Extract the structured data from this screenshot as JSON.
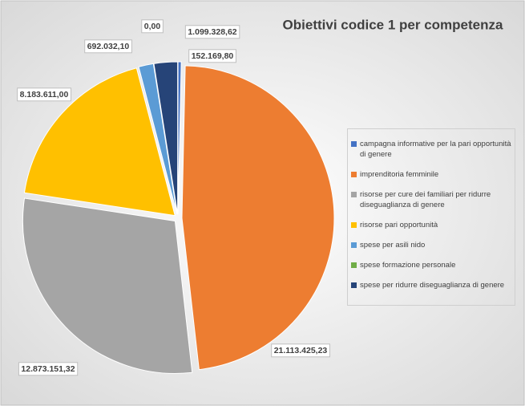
{
  "chart_data": {
    "type": "pie",
    "title": "Obiettivi codice 1 per competenza",
    "categories": [
      "campagna informative per la pari opportunità di genere",
      "imprenditoria femminile",
      "risorse per cure dei familiari per ridurre diseguaglianza di genere",
      "risorse pari opportunità",
      "spese per asili nido",
      "spese formazione personale",
      "spese per ridurre diseguaglianza di genere"
    ],
    "values": [
      152169.8,
      21113425.23,
      12873151.32,
      8183611.0,
      692032.1,
      0.0,
      1099328.62
    ],
    "value_labels": [
      "152.169,80",
      "21.113.425,23",
      "12.873.151,32",
      "8.183.611,00",
      "692.032,10",
      "0,00",
      "1.099.328,62"
    ],
    "colors": [
      "#4472c4",
      "#ed7d31",
      "#a5a5a5",
      "#ffc000",
      "#5b9bd5",
      "#70ad47",
      "#264478"
    ],
    "legend": "right"
  }
}
